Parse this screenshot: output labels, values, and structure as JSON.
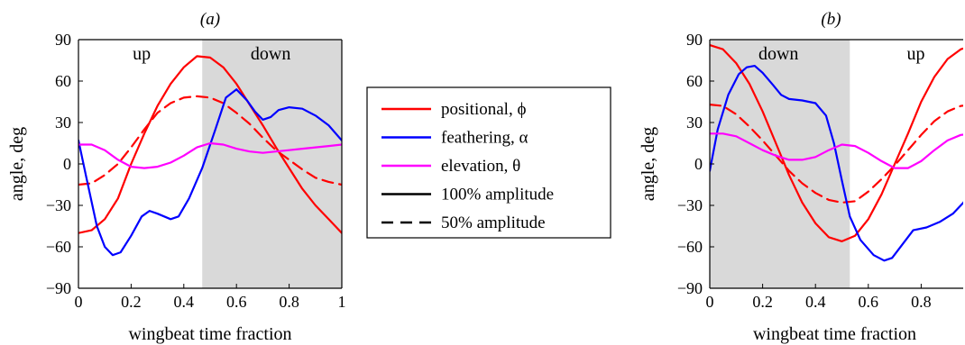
{
  "colors": {
    "positional": "#ff0000",
    "feathering": "#0000ff",
    "elevation": "#ff00ff",
    "shade": "#d9d9d9",
    "amplitude": "#000000"
  },
  "legend": {
    "items": [
      {
        "label": "positional, ϕ",
        "color": "#ff0000",
        "dash": false
      },
      {
        "label": "feathering, α",
        "color": "#0000ff",
        "dash": false
      },
      {
        "label": "elevation, θ",
        "color": "#ff00ff",
        "dash": false
      },
      {
        "label": "100% amplitude",
        "color": "#000000",
        "dash": false
      },
      {
        "label": "50% amplitude",
        "color": "#000000",
        "dash": true
      }
    ]
  },
  "chart_data": [
    {
      "type": "line",
      "title": "(a)",
      "xlabel": "wingbeat time fraction",
      "ylabel": "angle, deg",
      "xlim": [
        0,
        1
      ],
      "ylim": [
        -90,
        90
      ],
      "xticks": [
        "0",
        "0.2",
        "0.4",
        "0.6",
        "0.8",
        "1"
      ],
      "yticks": [
        "90",
        "60",
        "30",
        "0",
        "−30",
        "−60",
        "−90"
      ],
      "shaded_region": [
        0.47,
        1.0
      ],
      "phase_labels": [
        {
          "text": "up",
          "x": 0.24
        },
        {
          "text": "down",
          "x": 0.73
        }
      ],
      "series": [
        {
          "name": "positional, ϕ",
          "color": "#ff0000",
          "dash": false,
          "x": [
            0,
            0.05,
            0.1,
            0.15,
            0.2,
            0.25,
            0.3,
            0.35,
            0.4,
            0.45,
            0.5,
            0.55,
            0.6,
            0.65,
            0.7,
            0.75,
            0.8,
            0.85,
            0.9,
            0.95,
            1.0
          ],
          "y": [
            -50,
            -48,
            -40,
            -25,
            0,
            22,
            42,
            58,
            70,
            78,
            77,
            70,
            58,
            43,
            28,
            12,
            -3,
            -18,
            -30,
            -40,
            -50
          ]
        },
        {
          "name": "positional, ϕ",
          "color": "#ff0000",
          "dash": true,
          "x": [
            0,
            0.05,
            0.1,
            0.15,
            0.2,
            0.25,
            0.3,
            0.35,
            0.4,
            0.45,
            0.5,
            0.55,
            0.6,
            0.65,
            0.7,
            0.75,
            0.8,
            0.85,
            0.9,
            0.95,
            1.0
          ],
          "y": [
            -15,
            -14,
            -8,
            0,
            12,
            25,
            37,
            44,
            48,
            49,
            48,
            44,
            37,
            29,
            19,
            10,
            3,
            -4,
            -10,
            -13,
            -15
          ]
        },
        {
          "name": "feathering, α",
          "color": "#0000ff",
          "dash": false,
          "x": [
            0,
            0.03,
            0.07,
            0.1,
            0.13,
            0.16,
            0.2,
            0.24,
            0.27,
            0.3,
            0.35,
            0.38,
            0.42,
            0.47,
            0.52,
            0.56,
            0.6,
            0.64,
            0.67,
            0.7,
            0.73,
            0.76,
            0.8,
            0.85,
            0.9,
            0.95,
            1.0
          ],
          "y": [
            17,
            -10,
            -45,
            -60,
            -66,
            -64,
            -52,
            -38,
            -34,
            -36,
            -40,
            -38,
            -25,
            -3,
            25,
            48,
            54,
            46,
            38,
            32,
            34,
            39,
            41,
            40,
            35,
            28,
            17
          ]
        },
        {
          "name": "elevation, θ",
          "color": "#ff00ff",
          "dash": false,
          "x": [
            0,
            0.05,
            0.1,
            0.15,
            0.2,
            0.25,
            0.3,
            0.35,
            0.4,
            0.45,
            0.5,
            0.55,
            0.6,
            0.65,
            0.7,
            0.75,
            0.8,
            0.85,
            0.9,
            0.95,
            1.0
          ],
          "y": [
            14,
            14,
            10,
            3,
            -2,
            -3,
            -2,
            1,
            6,
            12,
            15,
            14,
            11,
            9,
            8,
            9,
            10,
            11,
            12,
            13,
            14
          ]
        }
      ]
    },
    {
      "type": "line",
      "title": "(b)",
      "xlabel": "wingbeat time fraction",
      "ylabel": "angle, deg",
      "xlim": [
        0,
        1
      ],
      "ylim": [
        -90,
        90
      ],
      "xticks": [
        "0",
        "0.2",
        "0.4",
        "0.6",
        "0.8"
      ],
      "yticks": [
        "90",
        "60",
        "30",
        "0",
        "−30",
        "−60",
        "−90"
      ],
      "shaded_region": [
        0,
        0.53
      ],
      "phase_labels": [
        {
          "text": "down",
          "x": 0.26
        },
        {
          "text": "up",
          "x": 0.78
        }
      ],
      "series": [
        {
          "name": "positional, ϕ",
          "color": "#ff0000",
          "dash": false,
          "x": [
            0,
            0.05,
            0.1,
            0.15,
            0.2,
            0.25,
            0.3,
            0.35,
            0.4,
            0.45,
            0.5,
            0.55,
            0.6,
            0.65,
            0.7,
            0.75,
            0.8,
            0.85,
            0.9,
            0.95,
            1.0
          ],
          "y": [
            86,
            83,
            73,
            58,
            38,
            15,
            -8,
            -28,
            -43,
            -53,
            -56,
            -52,
            -40,
            -22,
            0,
            22,
            45,
            63,
            76,
            83,
            86
          ]
        },
        {
          "name": "positional, ϕ",
          "color": "#ff0000",
          "dash": true,
          "x": [
            0,
            0.05,
            0.1,
            0.15,
            0.2,
            0.25,
            0.3,
            0.35,
            0.4,
            0.45,
            0.5,
            0.55,
            0.6,
            0.65,
            0.7,
            0.75,
            0.8,
            0.85,
            0.9,
            0.95,
            1.0
          ],
          "y": [
            43,
            42,
            36,
            27,
            17,
            6,
            -5,
            -14,
            -21,
            -26,
            -28,
            -27,
            -20,
            -11,
            -1,
            10,
            21,
            31,
            38,
            42,
            43
          ]
        },
        {
          "name": "feathering, α",
          "color": "#0000ff",
          "dash": false,
          "x": [
            0,
            0.03,
            0.07,
            0.11,
            0.14,
            0.17,
            0.2,
            0.24,
            0.27,
            0.3,
            0.35,
            0.4,
            0.44,
            0.47,
            0.5,
            0.53,
            0.57,
            0.62,
            0.66,
            0.69,
            0.73,
            0.77,
            0.82,
            0.87,
            0.92,
            0.96,
            1.0
          ],
          "y": [
            -5,
            25,
            50,
            65,
            70,
            71,
            66,
            57,
            50,
            47,
            46,
            44,
            35,
            15,
            -12,
            -38,
            -55,
            -66,
            -70,
            -68,
            -58,
            -48,
            -46,
            -42,
            -36,
            -28,
            -15
          ]
        },
        {
          "name": "elevation, θ",
          "color": "#ff00ff",
          "dash": false,
          "x": [
            0,
            0.05,
            0.1,
            0.15,
            0.2,
            0.25,
            0.3,
            0.35,
            0.4,
            0.45,
            0.5,
            0.55,
            0.6,
            0.65,
            0.7,
            0.75,
            0.8,
            0.85,
            0.9,
            0.95,
            1.0
          ],
          "y": [
            22,
            22,
            20,
            15,
            10,
            6,
            3,
            3,
            5,
            10,
            14,
            13,
            8,
            2,
            -3,
            -3,
            2,
            10,
            17,
            21,
            22
          ]
        }
      ]
    }
  ]
}
